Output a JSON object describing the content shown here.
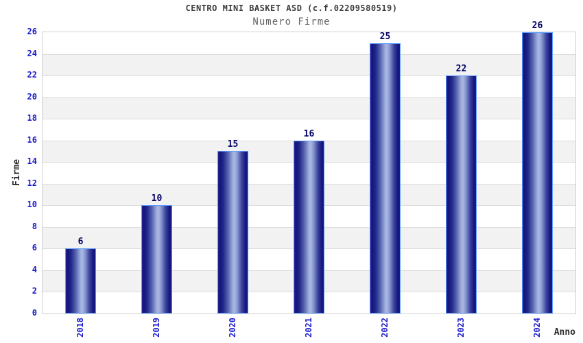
{
  "chart_data": {
    "type": "bar",
    "title": "CENTRO MINI BASKET ASD (c.f.02209580519)",
    "subtitle": "Numero Firme",
    "xlabel": "Anno",
    "ylabel": "Firme",
    "categories": [
      "2018",
      "2019",
      "2020",
      "2021",
      "2022",
      "2023",
      "2024"
    ],
    "values": [
      6,
      10,
      15,
      16,
      25,
      22,
      26
    ],
    "ylim": [
      0,
      26
    ],
    "ytick_step": 2,
    "grid": true,
    "legend_position": "none",
    "band_colors": [
      "#ffffff",
      "#f2f2f2"
    ],
    "colors": {
      "bar_dark": "#14147e",
      "bar_highlight": "#aab7e4",
      "bar_border": "#5b9bff",
      "axis_tick_label": "#1a1acc",
      "value_label": "#000066",
      "gridline": "#dcdcdc",
      "plot_border": "#d0d0d0",
      "title": "#3b3b3b",
      "subtitle": "#646464"
    }
  }
}
